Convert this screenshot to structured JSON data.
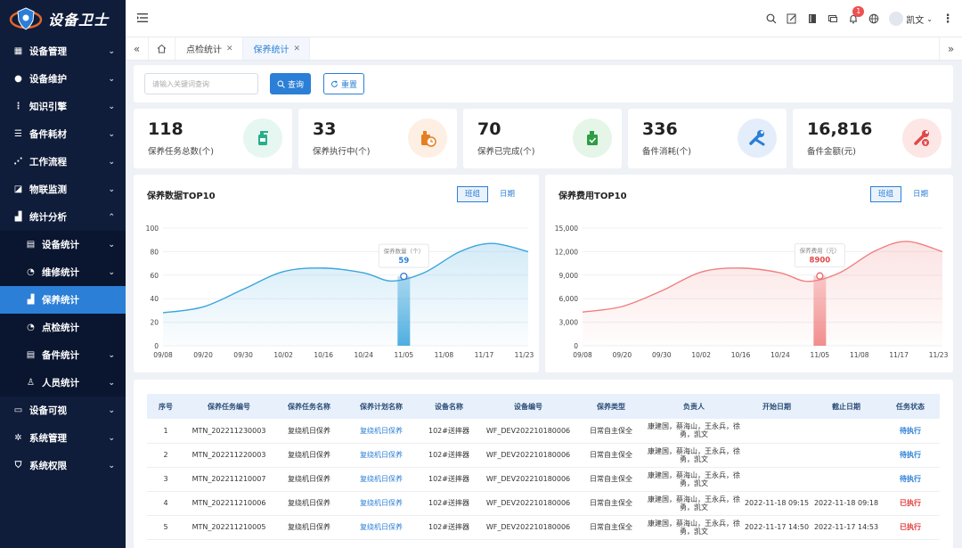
{
  "app": {
    "title": "设备卫士"
  },
  "sidebar": {
    "items": [
      {
        "label": "设备管理",
        "icon": "grid-icon"
      },
      {
        "label": "设备维护",
        "icon": "wrench-circle-icon"
      },
      {
        "label": "知识引擎",
        "icon": "dots-vertical-icon"
      },
      {
        "label": "备件耗材",
        "icon": "stack-icon"
      },
      {
        "label": "工作流程",
        "icon": "share-icon"
      },
      {
        "label": "物联监测",
        "icon": "trend-icon"
      },
      {
        "label": "统计分析",
        "icon": "bar-chart-icon",
        "expanded": true
      },
      {
        "label": "设备统计",
        "icon": "document-icon",
        "sub": true
      },
      {
        "label": "维修统计",
        "icon": "pie-icon",
        "sub": true
      },
      {
        "label": "保养统计",
        "icon": "bar-chart-icon",
        "sub": true,
        "active": true
      },
      {
        "label": "点检统计",
        "icon": "pie-icon",
        "sub": true
      },
      {
        "label": "备件统计",
        "icon": "document-icon",
        "sub": true
      },
      {
        "label": "人员统计",
        "icon": "users-icon",
        "sub": true
      },
      {
        "label": "设备可视",
        "icon": "monitor-icon"
      },
      {
        "label": "系统管理",
        "icon": "gear-icon"
      },
      {
        "label": "系统权限",
        "icon": "shield-icon"
      }
    ]
  },
  "topbar": {
    "notification_count": "1",
    "user_name": "凯文"
  },
  "tabs": [
    {
      "label": "点检统计"
    },
    {
      "label": "保养统计",
      "active": true
    }
  ],
  "search": {
    "placeholder": "请输入关键词查询",
    "query_label": "查询",
    "reset_label": "重置"
  },
  "stats": [
    {
      "value": "118",
      "label": "保养任务总数(个)",
      "color": "#27ae8a",
      "bg": "#e6f6f1",
      "icon": "oil-can-icon"
    },
    {
      "value": "33",
      "label": "保养执行中(个)",
      "color": "#e67e22",
      "bg": "#fdefe3",
      "icon": "oil-clock-icon"
    },
    {
      "value": "70",
      "label": "保养已完成(个)",
      "color": "#2e9e44",
      "bg": "#e5f5e8",
      "icon": "oil-check-icon"
    },
    {
      "value": "336",
      "label": "备件消耗(个)",
      "color": "#2b7fd6",
      "bg": "#e4eefb",
      "icon": "tools-icon"
    },
    {
      "value": "16,816",
      "label": "备件金额(元)",
      "color": "#e04848",
      "bg": "#fde6e6",
      "icon": "tools-money-icon"
    }
  ],
  "charts_ui": {
    "left": {
      "title": "保养数据TOP10",
      "seg_a": "班组",
      "seg_b": "日期",
      "tooltip_label": "保养数量（个）",
      "tooltip_value": "59"
    },
    "right": {
      "title": "保养费用TOP10",
      "seg_a": "班组",
      "seg_b": "日期",
      "tooltip_label": "保养费用（元）",
      "tooltip_value": "8900"
    }
  },
  "chart_data": [
    {
      "type": "area",
      "title": "保养数据TOP10",
      "categories": [
        "09/08",
        "09/20",
        "09/30",
        "10/02",
        "10/16",
        "10/24",
        "11/05",
        "11/08",
        "11/17",
        "11/23"
      ],
      "x": [
        0,
        1,
        2,
        3,
        4,
        5,
        6,
        7,
        8,
        9
      ],
      "curve_x": [
        0,
        1,
        2,
        3.0,
        4,
        5,
        5.7,
        6.5,
        7.4,
        8.2,
        9.1
      ],
      "curve_y": [
        28,
        33,
        48,
        63,
        66,
        62,
        55,
        62,
        80,
        87,
        80
      ],
      "yticks": [
        0,
        20,
        40,
        60,
        80,
        100
      ],
      "ylim": [
        0,
        100
      ],
      "highlight": {
        "x": 6,
        "value": 59
      },
      "color": "#3aa5dc",
      "grid": true
    },
    {
      "type": "area",
      "title": "保养费用TOP10",
      "categories": [
        "09/08",
        "09/20",
        "09/30",
        "10/02",
        "10/16",
        "10/24",
        "11/05",
        "11/08",
        "11/17",
        "11/23"
      ],
      "x": [
        0,
        1,
        2,
        3,
        4,
        5,
        6,
        7,
        8,
        9
      ],
      "curve_x": [
        0,
        1,
        2,
        3.0,
        4,
        5,
        5.7,
        6.5,
        7.4,
        8.2,
        9.1
      ],
      "curve_y": [
        4300,
        5000,
        7000,
        9400,
        9900,
        9300,
        8200,
        9300,
        12100,
        13300,
        12000
      ],
      "yticks": [
        0,
        3000,
        6000,
        9000,
        12000,
        15000
      ],
      "ytick_labels": [
        "0",
        "3,000",
        "6,000",
        "9,000",
        "12,000",
        "15,000"
      ],
      "ylim": [
        0,
        15000
      ],
      "highlight": {
        "x": 6,
        "value": 8900
      },
      "color": "#f08080",
      "grid": true
    }
  ],
  "table": {
    "headers": [
      "序号",
      "保养任务编号",
      "保养任务名称",
      "保养计划名称",
      "设备名称",
      "设备编号",
      "保养类型",
      "负责人",
      "开始日期",
      "截止日期",
      "任务状态"
    ],
    "rows": [
      [
        "1",
        "MTN_202211230003",
        "复绕机日保养",
        "复绕机日保养",
        "102#送摔器",
        "WF_DEV202210180006",
        "日常自主保全",
        "康建国，蔡海山，王永兵，徐勇，凯文",
        "",
        "",
        "待执行"
      ],
      [
        "2",
        "MTN_202211220003",
        "复绕机日保养",
        "复绕机日保养",
        "102#送摔器",
        "WF_DEV202210180006",
        "日常自主保全",
        "康建国，蔡海山，王永兵，徐勇，凯文",
        "",
        "",
        "待执行"
      ],
      [
        "3",
        "MTN_202211210007",
        "复绕机日保养",
        "复绕机日保养",
        "102#送摔器",
        "WF_DEV202210180006",
        "日常自主保全",
        "康建国，蔡海山，王永兵，徐勇，凯文",
        "",
        "",
        "待执行"
      ],
      [
        "4",
        "MTN_202211210006",
        "复绕机日保养",
        "复绕机日保养",
        "102#送摔器",
        "WF_DEV202210180006",
        "日常自主保全",
        "康建国，蔡海山，王永兵，徐勇，凯文",
        "2022-11-18 09:15",
        "2022-11-18 09:18",
        "已执行"
      ],
      [
        "5",
        "MTN_202211210005",
        "复绕机日保养",
        "复绕机日保养",
        "102#送摔器",
        "WF_DEV202210180006",
        "日常自主保全",
        "康建国，蔡海山，王永兵，徐勇，凯文",
        "2022-11-17 14:50",
        "2022-11-17 14:53",
        "已执行"
      ]
    ]
  }
}
